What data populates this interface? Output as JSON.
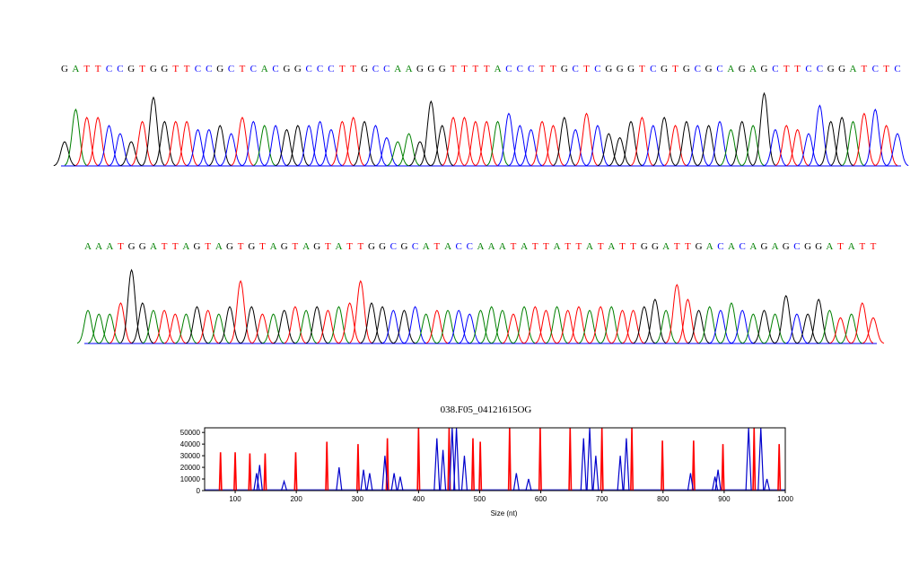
{
  "chart_data": [
    {
      "type": "chromatogram",
      "sequence": "GATTCCGTGGTTCCGCTCACGGCCCTTGCCAAGGGTTTTACCCTTGCTCGGGTCGTGCGCAGAGCTTCCGGATCTC",
      "base_colors": {
        "A": "#008000",
        "C": "#0000ff",
        "G": "#000000",
        "T": "#ff0000"
      },
      "heights": [
        30,
        70,
        60,
        60,
        50,
        40,
        30,
        55,
        85,
        55,
        55,
        55,
        45,
        45,
        50,
        40,
        60,
        55,
        50,
        50,
        45,
        50,
        50,
        55,
        45,
        55,
        60,
        55,
        50,
        35,
        30,
        40,
        30,
        80,
        50,
        60,
        60,
        55,
        55,
        55,
        65,
        50,
        45,
        55,
        50,
        60,
        45,
        65,
        50,
        40,
        35,
        55,
        60,
        50,
        60,
        50,
        55,
        50,
        50,
        55,
        45,
        55,
        50,
        90,
        45,
        50,
        45,
        40,
        75,
        55,
        60,
        55,
        65,
        70,
        50,
        40
      ]
    },
    {
      "type": "chromatogram",
      "sequence": "AAATGGATTAGTAGTGTAGTAGTATTGGCGCATACCAAATATTATTATATTGGATTGACACAGAGCGGATATT",
      "base_colors": {
        "A": "#008000",
        "C": "#0000ff",
        "G": "#000000",
        "T": "#ff0000"
      },
      "heights": [
        45,
        40,
        40,
        55,
        100,
        55,
        45,
        45,
        40,
        40,
        50,
        45,
        40,
        50,
        85,
        50,
        40,
        40,
        45,
        50,
        45,
        50,
        45,
        50,
        55,
        85,
        55,
        50,
        45,
        45,
        50,
        40,
        45,
        45,
        45,
        40,
        45,
        50,
        45,
        40,
        50,
        50,
        45,
        50,
        45,
        50,
        45,
        50,
        50,
        45,
        45,
        50,
        60,
        45,
        80,
        60,
        45,
        50,
        45,
        55,
        45,
        40,
        45,
        40,
        65,
        40,
        40,
        60,
        45,
        35,
        40,
        55,
        35
      ]
    },
    {
      "type": "electropherogram",
      "title": "038.F05_04121615OG",
      "x_label": "Size (nt)",
      "xlim": [
        50,
        1000
      ],
      "xticks": [
        100,
        200,
        300,
        400,
        500,
        600,
        700,
        800,
        900,
        1000
      ],
      "ylim": [
        0,
        54000
      ],
      "yticks": [
        0,
        10000,
        20000,
        30000,
        40000,
        50000
      ],
      "series": [
        {
          "color": "#ff0000",
          "x": [
            76,
            100,
            124,
            149,
            199,
            250,
            301,
            349,
            400,
            450,
            489,
            501,
            549,
            599,
            648,
            700,
            749,
            799,
            850,
            898,
            949,
            990
          ],
          "values": [
            33000,
            33000,
            32000,
            32000,
            33000,
            42000,
            40000,
            45000,
            54000,
            54000,
            45000,
            42000,
            54000,
            54000,
            54000,
            54000,
            54000,
            43000,
            43000,
            40000,
            54000,
            40000
          ]
        },
        {
          "color": "#0000cc",
          "x": [
            135,
            140,
            180,
            270,
            310,
            320,
            345,
            360,
            370,
            430,
            440,
            455,
            462,
            475,
            560,
            580,
            670,
            680,
            690,
            730,
            740,
            845,
            885,
            890,
            940,
            960,
            970
          ],
          "values": [
            15000,
            22000,
            8000,
            20000,
            18000,
            15000,
            30000,
            15000,
            12000,
            45000,
            35000,
            54000,
            54000,
            30000,
            15000,
            10000,
            45000,
            54000,
            30000,
            30000,
            45000,
            15000,
            12000,
            18000,
            54000,
            54000,
            10000
          ]
        }
      ]
    }
  ]
}
